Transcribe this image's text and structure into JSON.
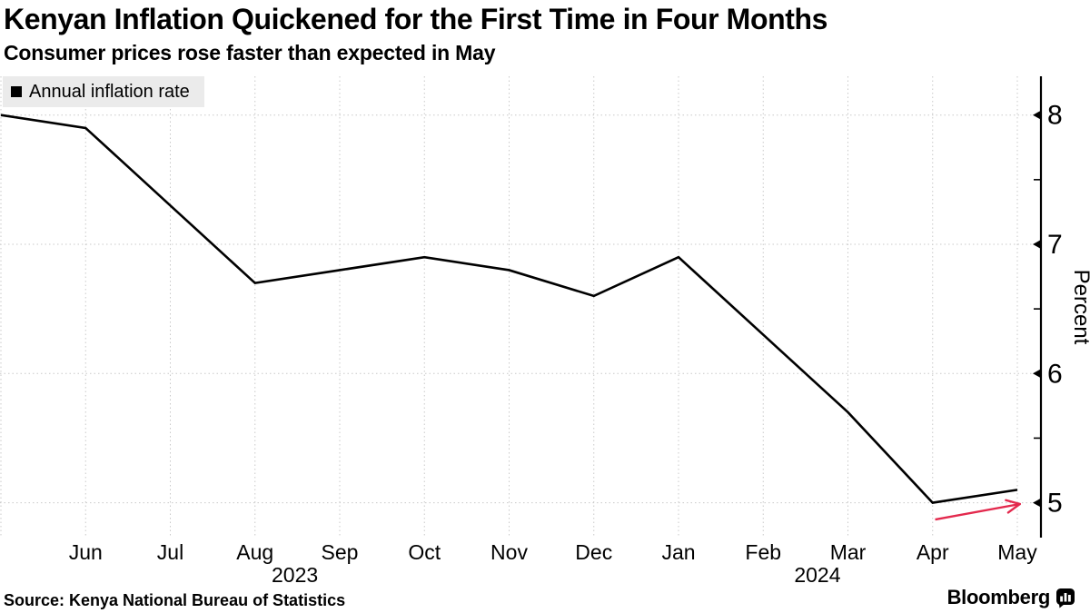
{
  "header": {
    "title": "Kenyan Inflation Quickened for the First Time in Four Months",
    "subtitle": "Consumer prices rose faster than expected in May"
  },
  "legend": {
    "label": "Annual inflation rate",
    "swatch_color": "#000000"
  },
  "chart_data": {
    "type": "line",
    "title": "Kenyan Inflation Quickened for the First Time in Four Months",
    "x_labels": [
      "",
      "Jun",
      "Jul",
      "Aug",
      "Sep",
      "Oct",
      "Nov",
      "Dec",
      "Jan",
      "Feb",
      "Mar",
      "Apr",
      "May"
    ],
    "year_labels": [
      {
        "text": "2023",
        "x_index": 3.47
      },
      {
        "text": "2024",
        "x_index": 9.64
      }
    ],
    "series": [
      {
        "name": "Annual inflation rate",
        "color": "#000000",
        "values": [
          8.0,
          7.9,
          7.3,
          6.7,
          6.8,
          6.9,
          6.8,
          6.6,
          6.9,
          6.3,
          5.7,
          5.0,
          5.1
        ]
      }
    ],
    "ylabel": "Percent",
    "yticks": [
      5,
      6,
      7,
      8
    ],
    "yticks_minor": [
      5.5,
      6.5,
      7.5
    ],
    "ylim": [
      4.73,
      8.3
    ],
    "grid": "dotted",
    "grid_color": "#c9c9c9",
    "axis_color": "#000000",
    "legend_position": "top-left",
    "annotation_arrow": {
      "color": "#e3294d",
      "from": {
        "x_index": 11.03,
        "value": 4.87
      },
      "to": {
        "x_index": 12.03,
        "value": 4.99
      }
    }
  },
  "footer": {
    "source": "Source: Kenya National Bureau of Statistics",
    "brand": "Bloomberg"
  }
}
